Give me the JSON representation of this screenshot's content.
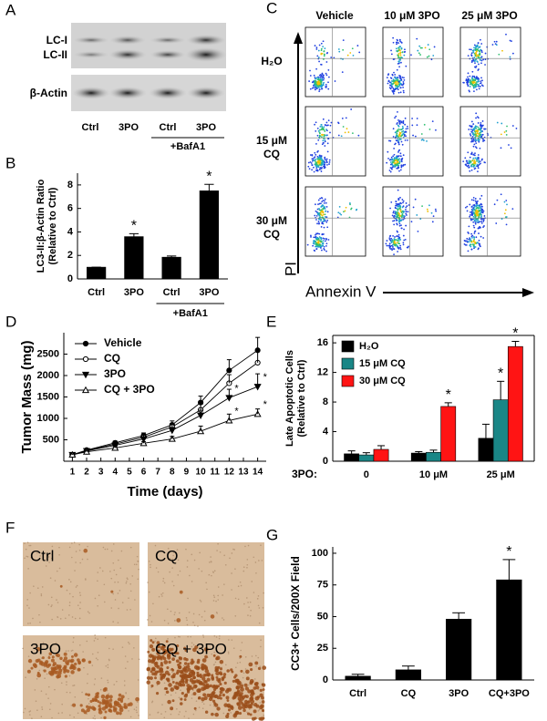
{
  "figure_labels": [
    "A",
    "B",
    "C",
    "D",
    "E",
    "F",
    "G"
  ],
  "blot": {
    "bands": [
      "LC-I",
      "LC-II",
      "β-Actin"
    ],
    "lanes": [
      "Ctrl",
      "3PO",
      "Ctrl",
      "3PO"
    ],
    "treatment": "+BafA1"
  },
  "flow": {
    "columns": [
      "Vehicle",
      "10 μM 3PO",
      "25 μM 3PO"
    ],
    "rows": [
      [
        "H₂O"
      ],
      [
        "15 μM",
        "CQ"
      ],
      [
        "30 μM",
        "CQ"
      ]
    ],
    "y_label": "PI",
    "x_label": "Annexin V"
  },
  "ihc": {
    "labels": [
      "Ctrl",
      "CQ",
      "3PO",
      "CQ + 3PO"
    ]
  },
  "chart_data": [
    {
      "type": "bar",
      "categories": [
        "Ctrl",
        "3PO",
        "Ctrl",
        "3PO"
      ],
      "values": [
        1,
        3.6,
        1.85,
        7.5
      ],
      "errors": [
        0,
        0.25,
        0.1,
        0.55
      ],
      "color": "#000000",
      "y_label": [
        "LC3-II:β-Actin Ratio",
        "(Relative to Ctrl)"
      ],
      "ylim": [
        0,
        9
      ],
      "yticks": [
        0,
        2,
        4,
        6,
        8
      ],
      "markers": [
        null,
        "*",
        null,
        "*"
      ],
      "group_label": "+BafA1"
    },
    {
      "type": "line",
      "x": [
        1,
        2,
        4,
        6,
        8,
        10,
        12,
        14
      ],
      "xlim": [
        0.4,
        14.6
      ],
      "xticks": [
        1,
        2,
        3,
        4,
        5,
        6,
        7,
        8,
        9,
        10,
        11,
        12,
        13,
        14
      ],
      "ylim": [
        0,
        3000
      ],
      "yticks": [
        500,
        1000,
        1500,
        2000,
        2500
      ],
      "x_label": "Time (days)",
      "y_label": "Tumor Mass (mg)",
      "color": "#000000",
      "series": [
        {
          "name": "Vehicle",
          "marker": "circle-filled",
          "values": [
            150,
            260,
            430,
            600,
            850,
            1370,
            2120,
            2590
          ],
          "errors": [
            20,
            25,
            40,
            60,
            90,
            150,
            250,
            300
          ]
        },
        {
          "name": "CQ",
          "marker": "circle-open",
          "values": [
            150,
            250,
            400,
            560,
            800,
            1200,
            1820,
            2300
          ],
          "errors": [
            20,
            25,
            40,
            50,
            80,
            130,
            200,
            280
          ]
        },
        {
          "name": "3PO",
          "marker": "triangle-down-filled",
          "values": [
            150,
            240,
            370,
            520,
            720,
            1070,
            1480,
            1740
          ],
          "errors": [
            20,
            25,
            35,
            50,
            70,
            120,
            200,
            300
          ],
          "markers": [
            null,
            null,
            null,
            null,
            null,
            null,
            "*",
            "*"
          ]
        },
        {
          "name": "CQ + 3PO",
          "marker": "triangle-up-open",
          "values": [
            150,
            220,
            310,
            420,
            520,
            700,
            950,
            1100
          ],
          "errors": [
            20,
            20,
            30,
            40,
            60,
            120,
            150,
            120
          ],
          "markers": [
            null,
            null,
            null,
            null,
            null,
            null,
            "*",
            "*"
          ]
        }
      ]
    },
    {
      "type": "bar",
      "categories": [
        "0",
        "10 μM",
        "25 μM"
      ],
      "x_label": "3PO:",
      "ylim": [
        0,
        17
      ],
      "yticks": [
        0,
        4,
        8,
        12,
        16
      ],
      "y_label": [
        "Late Apoptotic Cells",
        "(Relative to Ctrl)"
      ],
      "box": true,
      "series": [
        {
          "name": "H₂O",
          "color": "#000000",
          "values": [
            1,
            1.1,
            3.1
          ],
          "errors": [
            0.4,
            0.2,
            1.9
          ]
        },
        {
          "name": "15 μM CQ",
          "color": "#1a8686",
          "values": [
            0.85,
            1.2,
            8.3
          ],
          "errors": [
            0.3,
            0.3,
            2.5
          ],
          "markers": [
            null,
            null,
            "*"
          ]
        },
        {
          "name": "30 μM CQ",
          "color": "#ff1414",
          "values": [
            1.6,
            7.4,
            15.5
          ],
          "errors": [
            0.5,
            0.5,
            0.7
          ],
          "markers": [
            null,
            "*",
            "*"
          ]
        }
      ]
    },
    {
      "type": "bar",
      "categories": [
        "Ctrl",
        "CQ",
        "3PO",
        "CQ+3PO"
      ],
      "values": [
        3,
        8,
        48,
        79
      ],
      "errors": [
        1.5,
        3,
        5,
        16
      ],
      "color": "#000000",
      "ylim": [
        0,
        105
      ],
      "yticks": [
        0,
        25,
        50,
        75,
        100
      ],
      "y_label": "CC3+ Cells/200X Field",
      "markers": [
        null,
        null,
        null,
        "*"
      ]
    }
  ]
}
